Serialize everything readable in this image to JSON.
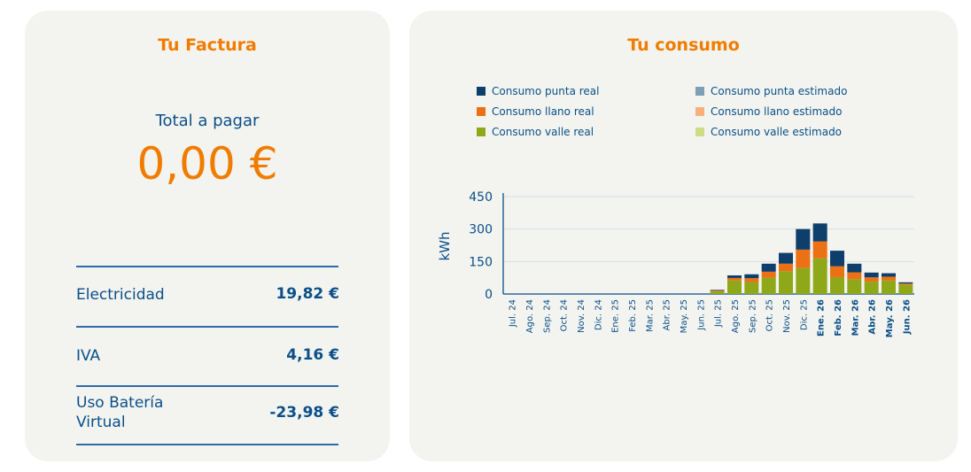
{
  "factura": {
    "title": "Tu Factura",
    "total_label": "Total a pagar",
    "total_amount": "0,00 €",
    "rows": [
      {
        "label": "Electricidad",
        "value": "19,82 €"
      },
      {
        "label": "IVA",
        "value": "4,16 €"
      },
      {
        "label": "Uso Batería Virtual",
        "value": "-23,98 €"
      }
    ]
  },
  "consumo": {
    "title": "Tu consumo",
    "legend": [
      {
        "label": "Consumo punta real",
        "color": "#0e3e6b"
      },
      {
        "label": "Consumo llano real",
        "color": "#ec7014"
      },
      {
        "label": "Consumo valle real",
        "color": "#8fa81a"
      },
      {
        "label": "Consumo punta estimado",
        "color": "#7f9fb6"
      },
      {
        "label": "Consumo llano estimado",
        "color": "#f6b07a"
      },
      {
        "label": "Consumo valle estimado",
        "color": "#cfdc86"
      }
    ]
  },
  "chart_data": {
    "type": "bar",
    "stacked": true,
    "ylabel": "kWh",
    "ylim": [
      0,
      450
    ],
    "yticks": [
      0,
      150,
      300,
      450
    ],
    "grid": true,
    "categories": [
      "Jul. 24",
      "Ago. 24",
      "Sep. 24",
      "Oct. 24",
      "Nov. 24",
      "Dic. 24",
      "Ene. 25",
      "Feb. 25",
      "Mar. 25",
      "Abr. 25",
      "May. 25",
      "Jun. 25",
      "Jul. 25",
      "Ago. 25",
      "Sep. 25",
      "Oct. 25",
      "Nov. 25",
      "Dic. 25",
      "Ene. 26",
      "Feb. 26",
      "Mar. 26",
      "Abr. 26",
      "May. 26",
      "Jun. 26"
    ],
    "bold_categories": [
      "Ene. 26",
      "Feb. 26",
      "Mar. 26",
      "Abr. 26",
      "May. 26",
      "Jun. 26"
    ],
    "series": [
      {
        "name": "Consumo valle real",
        "color": "#8fa81a",
        "values": [
          0,
          0,
          0,
          0,
          0,
          0,
          0,
          0,
          0,
          0,
          0,
          0,
          12,
          62,
          55,
          75,
          105,
          120,
          165,
          78,
          68,
          57,
          62,
          42
        ]
      },
      {
        "name": "Consumo llano real",
        "color": "#ec7014",
        "values": [
          0,
          0,
          0,
          0,
          0,
          0,
          0,
          0,
          0,
          0,
          0,
          0,
          4,
          12,
          18,
          28,
          35,
          85,
          78,
          50,
          32,
          20,
          18,
          6
        ]
      },
      {
        "name": "Consumo punta real",
        "color": "#0e3e6b",
        "values": [
          0,
          0,
          0,
          0,
          0,
          0,
          0,
          0,
          0,
          0,
          0,
          0,
          3,
          12,
          18,
          37,
          50,
          95,
          83,
          72,
          40,
          22,
          16,
          6
        ]
      }
    ]
  }
}
